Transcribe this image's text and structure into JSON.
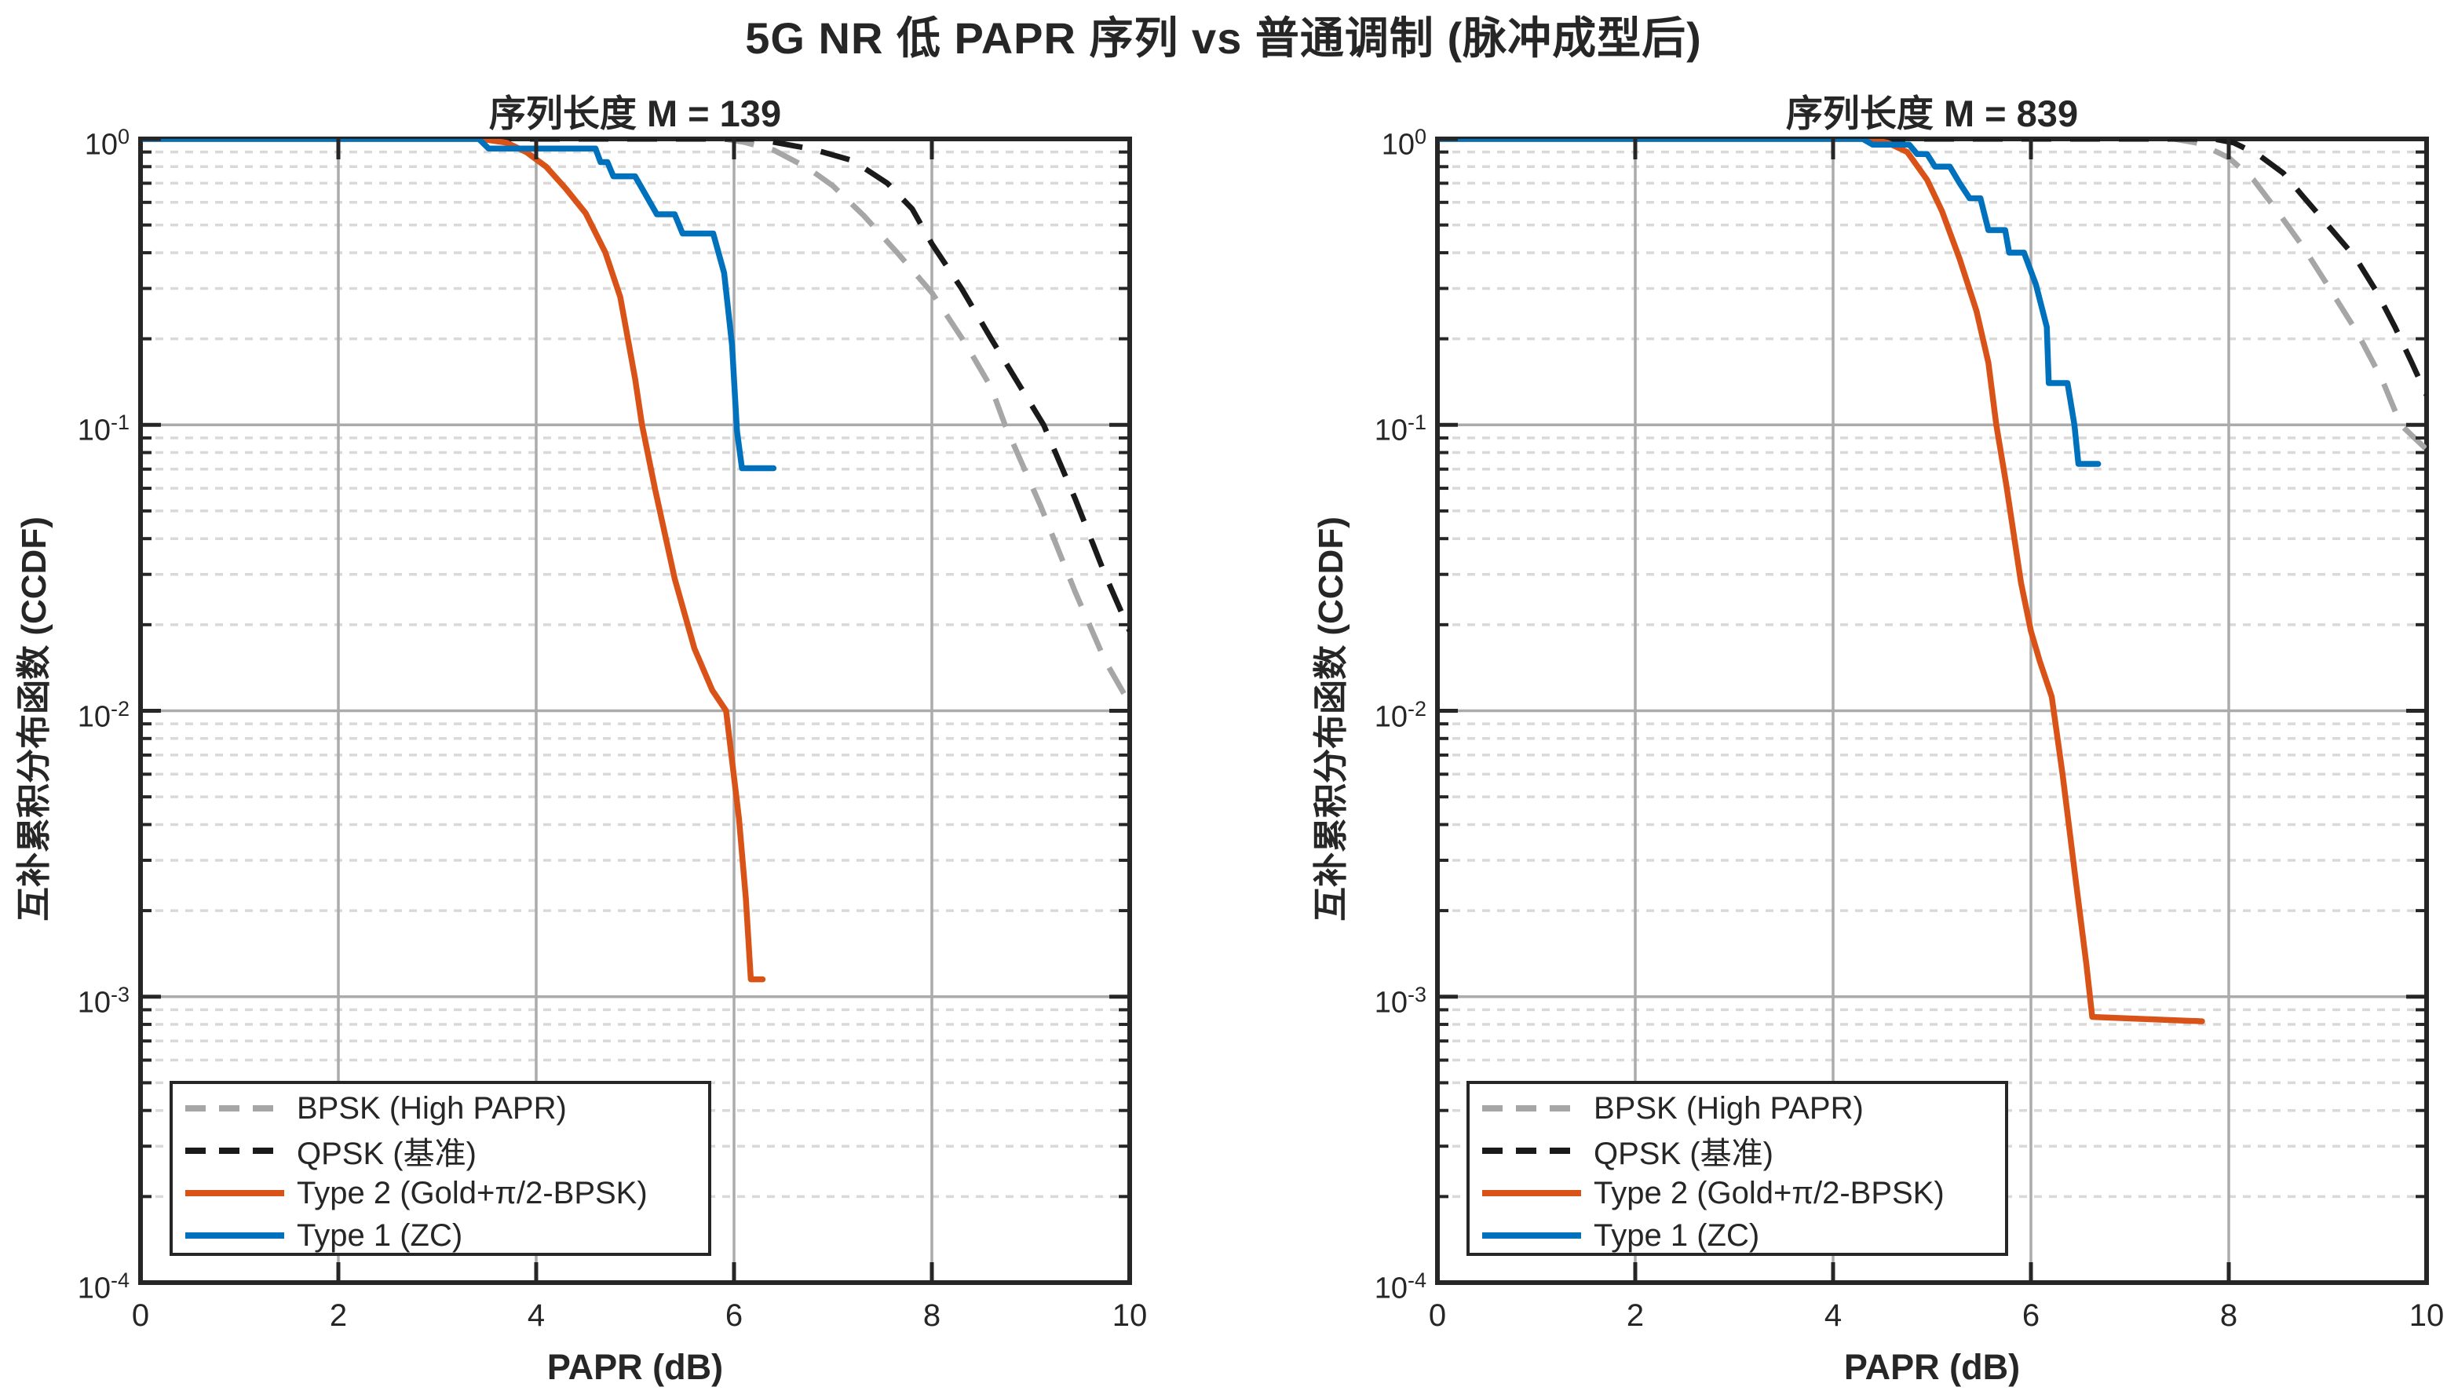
{
  "title": "5G NR 低 PAPR 序列 vs 普通调制 (脉冲成型后)",
  "colors": {
    "type1_zc": "#0072BD",
    "type2_gold": "#D95319",
    "bpsk": "#A6A6A6",
    "qpsk": "#1A1A1A",
    "axis": "#262626",
    "grid_major": "#ABABAB",
    "grid_minor": "#D9D9D9",
    "background": "#FFFFFF"
  },
  "legend": {
    "position": "southwest",
    "entries": [
      {
        "label": "BPSK (High PAPR)",
        "color": "#A6A6A6",
        "style": "dashed"
      },
      {
        "label": "QPSK (基准)",
        "color": "#1A1A1A",
        "style": "dashed"
      },
      {
        "label": "Type 2 (Gold+π/2-BPSK)",
        "color": "#D95319",
        "style": "solid"
      },
      {
        "label": "Type 1 (ZC)",
        "color": "#0072BD",
        "style": "solid"
      }
    ]
  },
  "chart_data": [
    {
      "type": "line",
      "title": "序列长度 M = 139",
      "xlabel": "PAPR (dB)",
      "ylabel": "互补累积分布函数 (CCDF)",
      "xlim": [
        0,
        10
      ],
      "y_scale": "log",
      "ylim": [
        0.0001,
        1
      ],
      "x_ticks": [
        0,
        2,
        4,
        6,
        8,
        10
      ],
      "y_tick_exponents": [
        0,
        -1,
        -2,
        -3,
        -4
      ],
      "grid": "major-solid + minor-dotted, box on",
      "series": [
        {
          "name": "BPSK (High PAPR)",
          "color": "#A6A6A6",
          "style": "dashed",
          "points": [
            [
              0,
              1
            ],
            [
              5.9,
              1
            ],
            [
              6.1,
              0.975
            ],
            [
              6.4,
              0.915
            ],
            [
              6.75,
              0.79
            ],
            [
              7.0,
              0.685
            ],
            [
              7.31,
              0.54
            ],
            [
              7.65,
              0.4
            ],
            [
              8.0,
              0.29
            ],
            [
              8.35,
              0.19
            ],
            [
              8.6,
              0.135
            ],
            [
              8.74,
              0.1
            ],
            [
              9.1,
              0.052
            ],
            [
              9.45,
              0.026
            ],
            [
              9.75,
              0.015
            ],
            [
              10,
              0.0106
            ]
          ]
        },
        {
          "name": "QPSK (基准)",
          "color": "#1A1A1A",
          "style": "dashed",
          "points": [
            [
              0,
              1
            ],
            [
              6.2,
              1
            ],
            [
              6.4,
              0.975
            ],
            [
              6.8,
              0.92
            ],
            [
              7.2,
              0.84
            ],
            [
              7.55,
              0.7
            ],
            [
              7.8,
              0.57
            ],
            [
              8.0,
              0.43
            ],
            [
              8.3,
              0.3
            ],
            [
              8.6,
              0.2
            ],
            [
              8.9,
              0.135
            ],
            [
              9.13,
              0.1
            ],
            [
              9.45,
              0.055
            ],
            [
              9.75,
              0.03
            ],
            [
              10,
              0.019
            ]
          ]
        },
        {
          "name": "Type 2 (Gold+π/2-BPSK)",
          "color": "#D95319",
          "style": "solid",
          "points": [
            [
              0,
              1
            ],
            [
              3.45,
              1
            ],
            [
              3.7,
              0.97
            ],
            [
              3.9,
              0.9
            ],
            [
              4.1,
              0.8
            ],
            [
              4.3,
              0.67
            ],
            [
              4.5,
              0.55
            ],
            [
              4.7,
              0.4
            ],
            [
              4.85,
              0.28
            ],
            [
              5.0,
              0.145
            ],
            [
              5.07,
              0.1
            ],
            [
              5.2,
              0.06
            ],
            [
              5.4,
              0.029
            ],
            [
              5.6,
              0.0165
            ],
            [
              5.78,
              0.0118
            ],
            [
              5.92,
              0.01
            ],
            [
              6.05,
              0.0042
            ],
            [
              6.12,
              0.0022
            ],
            [
              6.17,
              0.00115
            ],
            [
              6.29,
              0.00115
            ]
          ]
        },
        {
          "name": "Type 1 (ZC)",
          "color": "#0072BD",
          "style": "solid",
          "points": [
            [
              0,
              1
            ],
            [
              3.42,
              1
            ],
            [
              3.52,
              0.925
            ],
            [
              4.6,
              0.925
            ],
            [
              4.65,
              0.83
            ],
            [
              4.72,
              0.83
            ],
            [
              4.78,
              0.74
            ],
            [
              5.0,
              0.74
            ],
            [
              5.22,
              0.545
            ],
            [
              5.4,
              0.545
            ],
            [
              5.48,
              0.467
            ],
            [
              5.79,
              0.467
            ],
            [
              5.9,
              0.34
            ],
            [
              5.98,
              0.19
            ],
            [
              6.03,
              0.095
            ],
            [
              6.08,
              0.0705
            ],
            [
              6.4,
              0.0705
            ]
          ]
        }
      ]
    },
    {
      "type": "line",
      "title": "序列长度 M = 839",
      "xlabel": "PAPR (dB)",
      "ylabel": "互补累积分布函数 (CCDF)",
      "xlim": [
        0,
        10
      ],
      "y_scale": "log",
      "ylim": [
        0.0001,
        1
      ],
      "x_ticks": [
        0,
        2,
        4,
        6,
        8,
        10
      ],
      "y_tick_exponents": [
        0,
        -1,
        -2,
        -3,
        -4
      ],
      "grid": "major-solid + minor-dotted, box on",
      "series": [
        {
          "name": "BPSK (High PAPR)",
          "color": "#A6A6A6",
          "style": "dashed",
          "points": [
            [
              0,
              1
            ],
            [
              7.45,
              1
            ],
            [
              7.7,
              0.965
            ],
            [
              8.0,
              0.86
            ],
            [
              8.25,
              0.72
            ],
            [
              8.49,
              0.56
            ],
            [
              8.75,
              0.42
            ],
            [
              9.02,
              0.3
            ],
            [
              9.3,
              0.21
            ],
            [
              9.55,
              0.144
            ],
            [
              9.74,
              0.1
            ],
            [
              10,
              0.082
            ]
          ]
        },
        {
          "name": "QPSK (基准)",
          "color": "#1A1A1A",
          "style": "dashed",
          "points": [
            [
              0,
              1
            ],
            [
              7.85,
              1
            ],
            [
              8.05,
              0.97
            ],
            [
              8.3,
              0.88
            ],
            [
              8.55,
              0.76
            ],
            [
              8.75,
              0.63
            ],
            [
              9.0,
              0.5
            ],
            [
              9.28,
              0.385
            ],
            [
              9.5,
              0.29
            ],
            [
              9.68,
              0.22
            ],
            [
              9.85,
              0.165
            ],
            [
              10,
              0.127
            ]
          ]
        },
        {
          "name": "Type 2 (Gold+π/2-BPSK)",
          "color": "#D95319",
          "style": "solid",
          "points": [
            [
              0,
              1
            ],
            [
              4.35,
              1
            ],
            [
              4.55,
              0.97
            ],
            [
              4.75,
              0.9
            ],
            [
              4.95,
              0.72
            ],
            [
              5.1,
              0.56
            ],
            [
              5.28,
              0.38
            ],
            [
              5.45,
              0.25
            ],
            [
              5.57,
              0.165
            ],
            [
              5.65,
              0.1
            ],
            [
              5.75,
              0.062
            ],
            [
              5.9,
              0.028
            ],
            [
              6.0,
              0.019
            ],
            [
              6.09,
              0.0149
            ],
            [
              6.21,
              0.0112
            ],
            [
              6.32,
              0.006
            ],
            [
              6.45,
              0.0026
            ],
            [
              6.56,
              0.0013
            ],
            [
              6.62,
              0.00085
            ],
            [
              7.73,
              0.00082
            ]
          ]
        },
        {
          "name": "Type 1 (ZC)",
          "color": "#0072BD",
          "style": "solid",
          "points": [
            [
              0,
              1
            ],
            [
              4.3,
              1
            ],
            [
              4.4,
              0.955
            ],
            [
              4.77,
              0.955
            ],
            [
              4.85,
              0.885
            ],
            [
              4.95,
              0.885
            ],
            [
              5.03,
              0.8
            ],
            [
              5.18,
              0.8
            ],
            [
              5.28,
              0.7
            ],
            [
              5.38,
              0.62
            ],
            [
              5.49,
              0.62
            ],
            [
              5.57,
              0.48
            ],
            [
              5.74,
              0.48
            ],
            [
              5.78,
              0.4
            ],
            [
              5.93,
              0.4
            ],
            [
              6.05,
              0.31
            ],
            [
              6.16,
              0.22
            ],
            [
              6.18,
              0.14
            ],
            [
              6.37,
              0.14
            ],
            [
              6.44,
              0.1
            ],
            [
              6.48,
              0.073
            ],
            [
              6.68,
              0.073
            ]
          ]
        }
      ]
    }
  ]
}
